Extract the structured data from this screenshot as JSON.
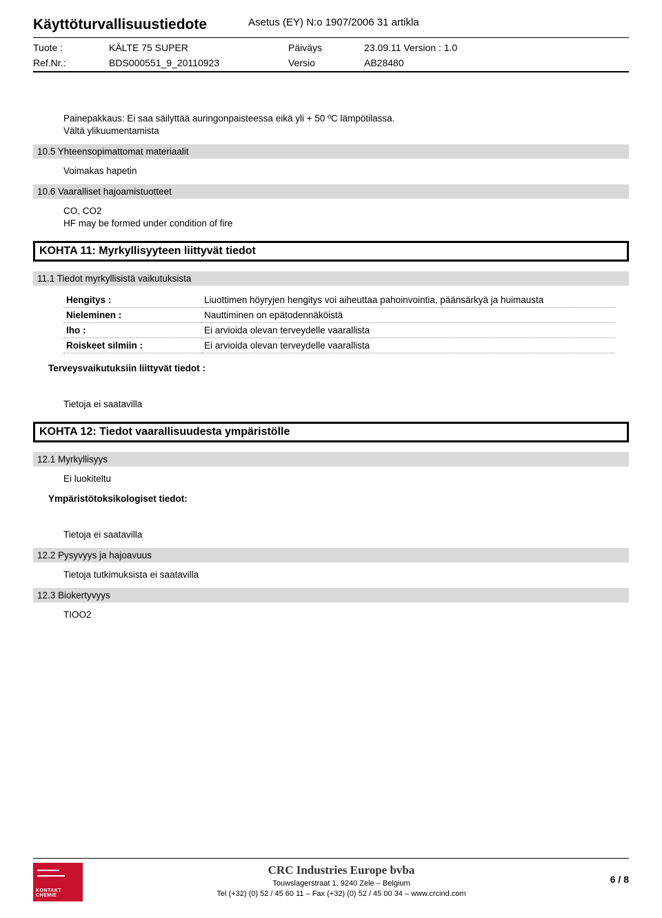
{
  "header": {
    "docTitle": "Käyttöturvallisuustiedote",
    "regulation": "Asetus (EY) N:o 1907/2006 31 artikla",
    "row1": {
      "l1": "Tuote :",
      "l2": "KÄLTE 75 SUPER",
      "l3": "Päiväys",
      "l4": "23.09.11 Version : 1.0"
    },
    "row2": {
      "l1": "Ref.Nr.:",
      "l2": "BDS000551_9_20110923",
      "l3": "Versio",
      "l4": "AB28480"
    }
  },
  "sections": {
    "storage1": "Painepakkaus: Ei saa säilyttää auringonpaisteessa eikä yli + 50 ºC lämpötilassa.",
    "storage2": "Vältä ylikuumentamista",
    "s10_5_title": "10.5 Yhteensopimattomat materiaalit",
    "s10_5_body": "Voimakas hapetin",
    "s10_6_title": "10.6 Vaaralliset hajoamistuotteet",
    "s10_6_body1": "CO, CO2",
    "s10_6_body2": "HF may be formed under condition of fire",
    "kohta11": "KOHTA 11: Myrkyllisyyteen liittyvät tiedot",
    "s11_1_title": "11.1 Tiedot myrkyllisistä vaikutuksista",
    "toxTable": [
      {
        "k": "Hengitys :",
        "v": "Liuottimen höyryjen hengitys voi aiheuttaa pahoinvointia, päänsärkyä ja huimausta"
      },
      {
        "k": "Nieleminen :",
        "v": "Nauttiminen on epätodennäköistä"
      },
      {
        "k": "Iho :",
        "v": "Ei arvioida olevan terveydelle vaarallista"
      },
      {
        "k": "Roiskeet silmiin :",
        "v": "Ei arvioida olevan terveydelle vaarallista"
      }
    ],
    "healthInfo": "Terveysvaikutuksiin liittyvät tiedot :",
    "noData1": "Tietoja ei saatavilla",
    "kohta12": "KOHTA 12: Tiedot vaarallisuudesta ympäristölle",
    "s12_1_title": "12.1 Myrkyllisyys",
    "s12_1_body": "Ei luokiteltu",
    "ecoInfo": "Ympäristötoksikologiset tiedot:",
    "noData2": "Tietoja ei saatavilla",
    "s12_2_title": "12.2 Pysyvyys ja hajoavuus",
    "s12_2_body": "Tietoja tutkimuksista ei saatavilla",
    "s12_3_title": "12.3 Biokertyvyys",
    "s12_3_body": "TIOO2"
  },
  "footer": {
    "logoText1": "KONTAKT",
    "logoText2": "CHEMIE",
    "company": "CRC Industries Europe bvba",
    "addr": "Touwslagerstraat 1, 9240 Zele – Belgium",
    "tel": "Tel (+32) (0) 52 / 45 60 11 – Fax (+32) (0) 52 / 45 00 34 – www.crcind.com",
    "pageNum": "6 / 8"
  }
}
